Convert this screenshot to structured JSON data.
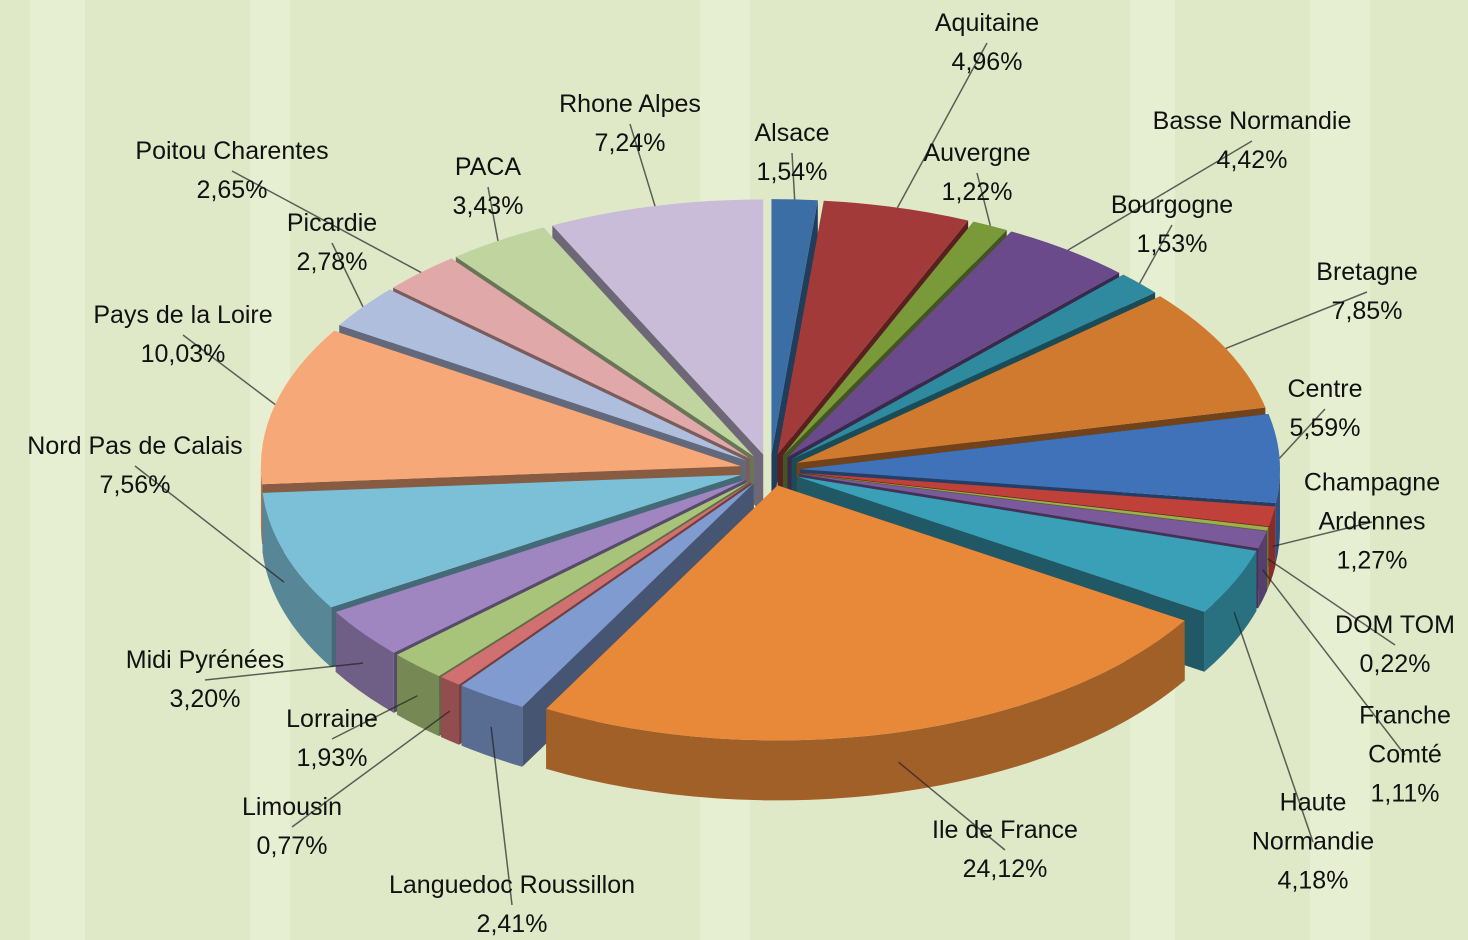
{
  "chart_data": {
    "type": "pie3d",
    "categories": [
      "Alsace",
      "Aquitaine",
      "Auvergne",
      "Basse Normandie",
      "Bourgogne",
      "Bretagne",
      "Centre",
      "Champagne Ardennes",
      "DOM TOM",
      "Franche Comté",
      "Haute Normandie",
      "Ile de France",
      "Languedoc Roussillon",
      "Limousin",
      "Lorraine",
      "Midi Pyrénées",
      "Nord Pas de Calais",
      "Pays de la Loire",
      "Picardie",
      "Poitou Charentes",
      "PACA",
      "Rhone Alpes"
    ],
    "values": [
      1.54,
      4.96,
      1.22,
      4.42,
      1.53,
      7.85,
      5.59,
      1.27,
      0.22,
      1.11,
      4.18,
      24.12,
      2.41,
      0.77,
      1.93,
      3.2,
      7.56,
      10.03,
      2.78,
      2.65,
      3.43,
      7.24
    ],
    "value_labels": [
      "1,54%",
      "4,96%",
      "1,22%",
      "4,42%",
      "1,53%",
      "7,85%",
      "5,59%",
      "1,27%",
      "0,22%",
      "1,11%",
      "4,18%",
      "24,12%",
      "2,41%",
      "0,77%",
      "1,93%",
      "3,20%",
      "7,56%",
      "10,03%",
      "2,78%",
      "2,65%",
      "3,43%",
      "7,24%"
    ],
    "colors": [
      "#3a6ea5",
      "#a33a3a",
      "#7a9a3a",
      "#6a4a8a",
      "#2f8aa0",
      "#d07a30",
      "#3f72b8",
      "#c0403a",
      "#9ab04a",
      "#7a5a9a",
      "#3aa0b8",
      "#e8893a",
      "#7f9bd0",
      "#d07070",
      "#a8c47a",
      "#9f86c0",
      "#7cc0d8",
      "#f7a878",
      "#b0bede",
      "#e0a8a8",
      "#c0d4a0",
      "#c8bcd8"
    ]
  }
}
